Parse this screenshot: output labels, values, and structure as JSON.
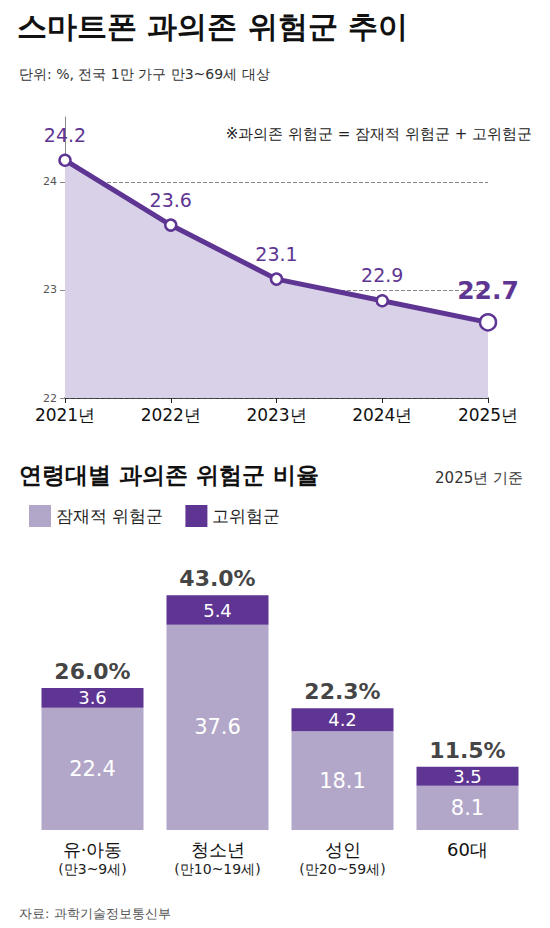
{
  "chart_data": [
    {
      "type": "line",
      "title": "스마트폰 과의존 위험군 추이",
      "subtitle": "단위: %, 전국 1만 가구 만3~69세 대상",
      "annotation": "※과의존 위험군 = 잠재적 위험군 + 고위험군",
      "categories": [
        "2021년",
        "2022년",
        "2023년",
        "2024년",
        "2025년"
      ],
      "values": [
        24.2,
        23.6,
        23.1,
        22.9,
        22.7
      ],
      "color": "#5e3593",
      "ylim": [
        22,
        24.6
      ],
      "yticks": [
        22,
        23,
        24
      ],
      "grid": true,
      "data_labels": true,
      "marker": "circle"
    },
    {
      "type": "bar",
      "stacked": true,
      "title": "연령대별 과의존 위험군 비율",
      "subtitle": "2025년 기준",
      "categories": [
        "유·아동",
        "청소년",
        "성인",
        "60대"
      ],
      "category_notes": [
        "(만3~9세)",
        "(만10~19세)",
        "(만20~59세)",
        null
      ],
      "series": [
        {
          "name": "잠재적 위험군",
          "color": "#b2a7c9",
          "values": [
            22.4,
            37.6,
            18.1,
            8.1
          ]
        },
        {
          "name": "고위험군",
          "color": "#5e3593",
          "values": [
            3.6,
            5.4,
            4.2,
            3.5
          ]
        }
      ],
      "totals": [
        26.0,
        43.0,
        22.3,
        11.5
      ],
      "total_labels": [
        "26.0%",
        "43.0%",
        "22.3%",
        "11.5%"
      ],
      "ylim": [
        0,
        48
      ],
      "tick_labels": false,
      "legend": "top-left",
      "data_labels": true
    }
  ],
  "source": "자료: 과학기술정보통신부"
}
